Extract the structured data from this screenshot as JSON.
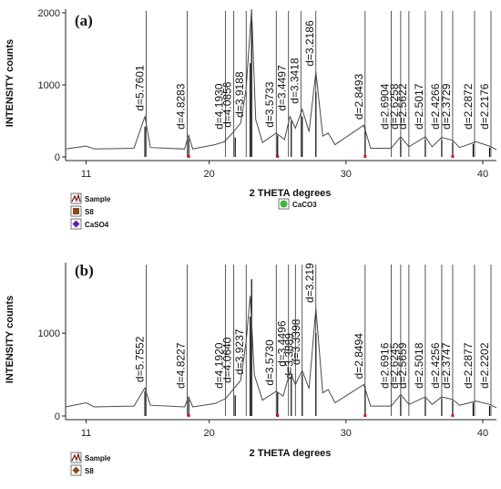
{
  "chart_data": [
    {
      "type": "line",
      "panel_label": "(a)",
      "xlabel": "2 THETA degrees",
      "ylabel": "INTENSITY counts",
      "xlim": [
        9.5,
        41
      ],
      "ylim": [
        0,
        2050
      ],
      "x_ticks": [
        11,
        20,
        30,
        40
      ],
      "y_ticks": [
        0,
        1000,
        2000
      ],
      "series_pattern": [
        {
          "x": 9.5,
          "y": 110
        },
        {
          "x": 11.0,
          "y": 150
        },
        {
          "x": 11.6,
          "y": 110
        },
        {
          "x": 14.5,
          "y": 120
        },
        {
          "x": 15.3,
          "y": 560
        },
        {
          "x": 15.7,
          "y": 130
        },
        {
          "x": 18.2,
          "y": 110
        },
        {
          "x": 18.5,
          "y": 300
        },
        {
          "x": 18.8,
          "y": 110
        },
        {
          "x": 20.4,
          "y": 170
        },
        {
          "x": 21.1,
          "y": 210
        },
        {
          "x": 21.7,
          "y": 330
        },
        {
          "x": 22.3,
          "y": 470
        },
        {
          "x": 22.7,
          "y": 950
        },
        {
          "x": 23.1,
          "y": 2050
        },
        {
          "x": 23.4,
          "y": 520
        },
        {
          "x": 23.9,
          "y": 200
        },
        {
          "x": 24.9,
          "y": 330
        },
        {
          "x": 25.5,
          "y": 240
        },
        {
          "x": 25.9,
          "y": 560
        },
        {
          "x": 26.3,
          "y": 400
        },
        {
          "x": 26.8,
          "y": 660
        },
        {
          "x": 27.3,
          "y": 350
        },
        {
          "x": 27.8,
          "y": 1180
        },
        {
          "x": 28.3,
          "y": 290
        },
        {
          "x": 28.7,
          "y": 330
        },
        {
          "x": 29.2,
          "y": 170
        },
        {
          "x": 31.3,
          "y": 440
        },
        {
          "x": 31.8,
          "y": 120
        },
        {
          "x": 33.3,
          "y": 120
        },
        {
          "x": 34.0,
          "y": 280
        },
        {
          "x": 34.6,
          "y": 140
        },
        {
          "x": 35.8,
          "y": 280
        },
        {
          "x": 36.3,
          "y": 140
        },
        {
          "x": 37.0,
          "y": 270
        },
        {
          "x": 37.8,
          "y": 230
        },
        {
          "x": 38.3,
          "y": 130
        },
        {
          "x": 39.5,
          "y": 210
        },
        {
          "x": 40.5,
          "y": 150
        },
        {
          "x": 41.0,
          "y": 100
        }
      ],
      "d_spacing_labels": [
        {
          "text": "d=5.7601",
          "x": 15.4,
          "y": 560
        },
        {
          "text": "d=4.8283",
          "x": 18.4,
          "y": 300
        },
        {
          "text": "d=4.1930",
          "x": 21.2,
          "y": 210
        },
        {
          "text": "d=4.0856",
          "x": 21.8,
          "y": 330
        },
        {
          "text": "d=3.9188",
          "x": 22.7,
          "y": 470
        },
        {
          "text": "d=3.5733",
          "x": 24.9,
          "y": 330
        },
        {
          "text": "d=3.4497",
          "x": 25.8,
          "y": 560
        },
        {
          "text": "d=3.3418",
          "x": 26.7,
          "y": 660
        },
        {
          "text": "d=3.2186",
          "x": 27.8,
          "y": 1180
        },
        {
          "text": "d=2.8493",
          "x": 31.4,
          "y": 440
        },
        {
          "text": "d=2.6904",
          "x": 33.3,
          "y": 140
        },
        {
          "text": "d=2.6258",
          "x": 34.0,
          "y": 280
        },
        {
          "text": "d=2.5622",
          "x": 34.6,
          "y": 150
        },
        {
          "text": "d=2.5017",
          "x": 35.8,
          "y": 280
        },
        {
          "text": "d=2.4266",
          "x": 37.0,
          "y": 270
        },
        {
          "text": "d=2.3729",
          "x": 37.8,
          "y": 230
        },
        {
          "text": "d=2.2872",
          "x": 39.4,
          "y": 210
        },
        {
          "text": "d=2.2176",
          "x": 40.6,
          "y": 150
        }
      ],
      "reference_sticks": [
        {
          "phase": "S8",
          "x": [
            15.3,
            18.5,
            21.9,
            23.0,
            23.1,
            25.0,
            26.0,
            26.8,
            27.8,
            31.4,
            34.0,
            35.8,
            37.0,
            37.8,
            39.3,
            40.5
          ],
          "y": [
            420,
            250,
            270,
            1300,
            1900,
            300,
            500,
            560,
            900,
            400,
            240,
            240,
            230,
            200,
            180,
            130
          ]
        }
      ],
      "legend": [
        {
          "label": "Sample",
          "icon": "sample-pattern-icon",
          "color": "#7a1010"
        },
        {
          "label": "S8",
          "icon": "square-icon",
          "color": "#8b4a1a"
        },
        {
          "label": "CaSO4",
          "icon": "diamond-icon",
          "color": "#5a1fb8"
        },
        {
          "label": "CaCO3",
          "icon": "circle-icon",
          "color": "#3fb53f"
        }
      ]
    },
    {
      "type": "line",
      "panel_label": "(b)",
      "xlabel": "2 THETA degrees",
      "ylabel": "INTENSITY counts",
      "xlim": [
        9.5,
        41
      ],
      "ylim": [
        0,
        1850
      ],
      "x_ticks": [
        11,
        20,
        30,
        40
      ],
      "y_ticks": [
        0,
        1000
      ],
      "series_pattern": [
        {
          "x": 9.5,
          "y": 110
        },
        {
          "x": 11.0,
          "y": 160
        },
        {
          "x": 11.6,
          "y": 110
        },
        {
          "x": 14.5,
          "y": 120
        },
        {
          "x": 15.3,
          "y": 340
        },
        {
          "x": 15.7,
          "y": 130
        },
        {
          "x": 18.2,
          "y": 110
        },
        {
          "x": 18.5,
          "y": 230
        },
        {
          "x": 18.8,
          "y": 110
        },
        {
          "x": 20.4,
          "y": 150
        },
        {
          "x": 21.2,
          "y": 210
        },
        {
          "x": 21.8,
          "y": 330
        },
        {
          "x": 22.3,
          "y": 430
        },
        {
          "x": 22.7,
          "y": 900
        },
        {
          "x": 23.0,
          "y": 1450
        },
        {
          "x": 23.3,
          "y": 500
        },
        {
          "x": 23.9,
          "y": 190
        },
        {
          "x": 24.9,
          "y": 300
        },
        {
          "x": 25.4,
          "y": 240
        },
        {
          "x": 25.9,
          "y": 530
        },
        {
          "x": 26.3,
          "y": 380
        },
        {
          "x": 26.8,
          "y": 550
        },
        {
          "x": 27.3,
          "y": 330
        },
        {
          "x": 27.8,
          "y": 1300
        },
        {
          "x": 28.3,
          "y": 280
        },
        {
          "x": 28.7,
          "y": 320
        },
        {
          "x": 29.2,
          "y": 160
        },
        {
          "x": 31.3,
          "y": 380
        },
        {
          "x": 31.8,
          "y": 120
        },
        {
          "x": 33.3,
          "y": 120
        },
        {
          "x": 34.0,
          "y": 260
        },
        {
          "x": 34.6,
          "y": 140
        },
        {
          "x": 35.8,
          "y": 230
        },
        {
          "x": 36.3,
          "y": 140
        },
        {
          "x": 37.0,
          "y": 230
        },
        {
          "x": 37.8,
          "y": 200
        },
        {
          "x": 38.3,
          "y": 130
        },
        {
          "x": 39.5,
          "y": 180
        },
        {
          "x": 40.5,
          "y": 140
        },
        {
          "x": 41.0,
          "y": 100
        }
      ],
      "d_spacing_labels": [
        {
          "text": "d=5.7552",
          "x": 15.4,
          "y": 340
        },
        {
          "text": "d=4.8227",
          "x": 18.4,
          "y": 230
        },
        {
          "text": "d=4.1920",
          "x": 21.2,
          "y": 210
        },
        {
          "text": "d=4.0640",
          "x": 21.8,
          "y": 330
        },
        {
          "text": "d=3.9237",
          "x": 22.7,
          "y": 430
        },
        {
          "text": "d=3.5730",
          "x": 24.9,
          "y": 300
        },
        {
          "text": "d=3.4496",
          "x": 25.8,
          "y": 530
        },
        {
          "text": "d=3.3889",
          "x": 26.3,
          "y": 380
        },
        {
          "text": "d=3.3398",
          "x": 26.8,
          "y": 550
        },
        {
          "text": "d=3.219",
          "x": 27.8,
          "y": 1300
        },
        {
          "text": "d=2.8494",
          "x": 31.4,
          "y": 380
        },
        {
          "text": "d=2.6916",
          "x": 33.3,
          "y": 140
        },
        {
          "text": "d=2.6245",
          "x": 34.0,
          "y": 260
        },
        {
          "text": "d=2.5659",
          "x": 34.6,
          "y": 150
        },
        {
          "text": "d=2.5018",
          "x": 35.8,
          "y": 230
        },
        {
          "text": "d=2.4256",
          "x": 37.0,
          "y": 230
        },
        {
          "text": "d=2.3747",
          "x": 37.8,
          "y": 200
        },
        {
          "text": "d=2.2877",
          "x": 39.4,
          "y": 180
        },
        {
          "text": "d=2.2202",
          "x": 40.6,
          "y": 140
        }
      ],
      "reference_sticks": [
        {
          "phase": "S8",
          "x": [
            15.3,
            18.5,
            21.9,
            23.0,
            23.1,
            25.0,
            26.0,
            26.8,
            27.8,
            31.4,
            34.0,
            35.8,
            37.0,
            37.8,
            39.3,
            40.5
          ],
          "y": [
            300,
            200,
            250,
            1200,
            1650,
            280,
            480,
            500,
            1000,
            350,
            230,
            210,
            210,
            180,
            160,
            120
          ]
        }
      ],
      "legend": [
        {
          "label": "Sample",
          "icon": "sample-pattern-icon",
          "color": "#7a1010"
        },
        {
          "label": "S8",
          "icon": "diamond-icon",
          "color": "#8b4a1a"
        }
      ]
    }
  ],
  "colors": {
    "pattern": "#4a4a4a",
    "stick": "#000000",
    "accent_red": "#cc1a1a",
    "accent_green": "#2e9e2e"
  }
}
